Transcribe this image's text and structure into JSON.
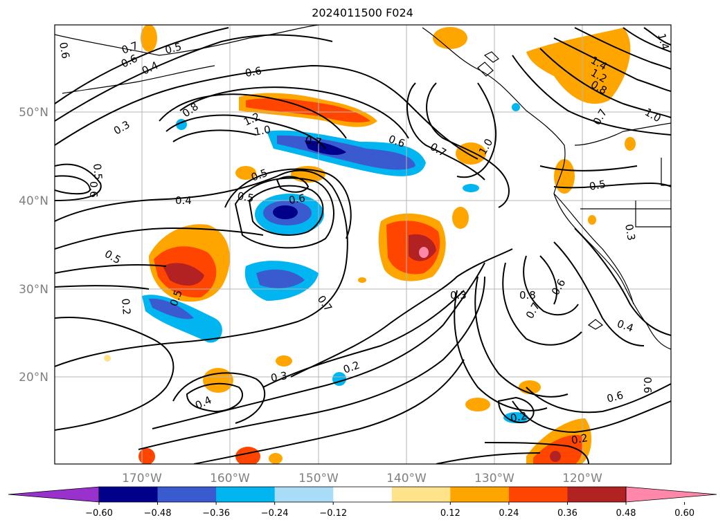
{
  "title": "2024011500 F024",
  "latitude_labels": [
    "50°N",
    "40°N",
    "30°N",
    "20°N"
  ],
  "longitude_labels": [
    "170°W",
    "160°W",
    "150°W",
    "140°W",
    "130°W",
    "120°W"
  ],
  "colorbar": {
    "ticks": [
      "−0.60",
      "−0.48",
      "−0.36",
      "−0.24",
      "−0.12",
      "0.12",
      "0.24",
      "0.36",
      "0.48",
      "0.60"
    ],
    "colors": [
      "#9932cc",
      "#00008b",
      "#3a5bcf",
      "#00b5f0",
      "#a8dcf7",
      "#ffffff",
      "#ffe38a",
      "#ffa500",
      "#ff4500",
      "#b22222",
      "#ff88aa"
    ]
  },
  "contour_labels": [
    {
      "text": "0.6"
    },
    {
      "text": "0.7"
    },
    {
      "text": "0.5"
    },
    {
      "text": "0.6"
    },
    {
      "text": "0.4"
    },
    {
      "text": "0.6"
    },
    {
      "text": "0.8"
    },
    {
      "text": "1.2"
    },
    {
      "text": "1.0"
    },
    {
      "text": "0.3"
    },
    {
      "text": "0.7"
    },
    {
      "text": "0.6"
    },
    {
      "text": "0.7"
    },
    {
      "text": "1.0"
    },
    {
      "text": "0.5"
    },
    {
      "text": "0.6"
    },
    {
      "text": "0.5"
    },
    {
      "text": "0.5"
    },
    {
      "text": "0.4"
    },
    {
      "text": "0.6"
    },
    {
      "text": "0.5"
    },
    {
      "text": "0.2"
    },
    {
      "text": "0.5"
    },
    {
      "text": "0.7"
    },
    {
      "text": "0.3"
    },
    {
      "text": "0.8"
    },
    {
      "text": "0.7"
    },
    {
      "text": "0.6"
    },
    {
      "text": "0.4"
    },
    {
      "text": "0.3"
    },
    {
      "text": "0.2"
    },
    {
      "text": "0.4"
    },
    {
      "text": "0.2"
    },
    {
      "text": "0.6"
    },
    {
      "text": "0.6"
    },
    {
      "text": "0.2"
    },
    {
      "text": "1.4"
    },
    {
      "text": "1.2"
    },
    {
      "text": "0.8"
    },
    {
      "text": "1.0"
    },
    {
      "text": "0.7"
    },
    {
      "text": "0.5"
    },
    {
      "text": "0.3"
    },
    {
      "text": "1.4"
    }
  ]
}
